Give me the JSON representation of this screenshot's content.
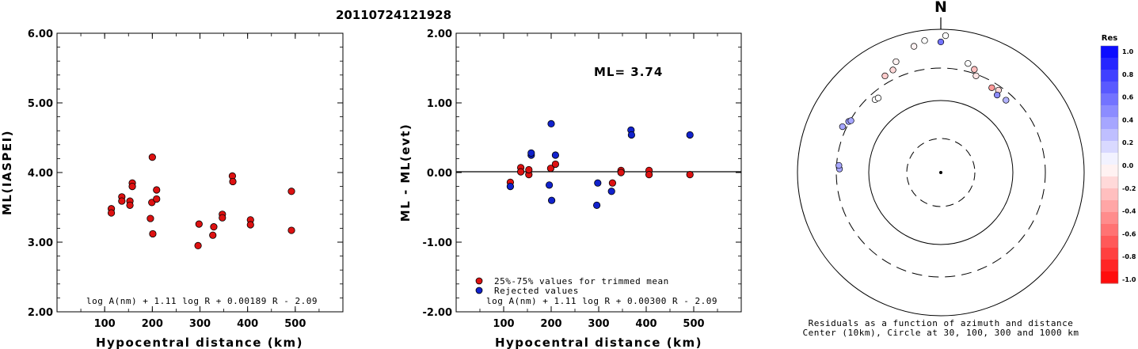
{
  "title": "20110724121928",
  "chart_data": [
    {
      "type": "scatter",
      "name": "ml-vs-distance",
      "xlabel": "Hypocentral distance (km)",
      "ylabel": "ML(IASPEI)",
      "xlim": [
        0,
        600
      ],
      "ylim": [
        2.0,
        6.0
      ],
      "xticks": [
        "100",
        "200",
        "300",
        "400",
        "500"
      ],
      "yticks": [
        "2.00",
        "3.00",
        "4.00",
        "5.00",
        "6.00"
      ],
      "formula": "log A(nm) + 1.11 log R + 0.00189 R - 2.09",
      "series": [
        {
          "color": "#dd1111",
          "points": [
            [
              114,
              3.48
            ],
            [
              114,
              3.42
            ],
            [
              136,
              3.65
            ],
            [
              136,
              3.59
            ],
            [
              153,
              3.59
            ],
            [
              153,
              3.53
            ],
            [
              158,
              3.85
            ],
            [
              158,
              3.8
            ],
            [
              196,
              3.34
            ],
            [
              199,
              3.57
            ],
            [
              200,
              4.22
            ],
            [
              201,
              3.12
            ],
            [
              209,
              3.75
            ],
            [
              209,
              3.62
            ],
            [
              296,
              2.95
            ],
            [
              298,
              3.26
            ],
            [
              327,
              3.1
            ],
            [
              329,
              3.22
            ],
            [
              347,
              3.4
            ],
            [
              347,
              3.35
            ],
            [
              368,
              3.95
            ],
            [
              369,
              3.87
            ],
            [
              406,
              3.32
            ],
            [
              406,
              3.25
            ],
            [
              492,
              3.73
            ],
            [
              492,
              3.17
            ]
          ]
        }
      ]
    },
    {
      "type": "scatter",
      "name": "residual-vs-distance",
      "xlabel": "Hypocentral distance (km)",
      "ylabel": "ML - ML(evt)",
      "xlim": [
        0,
        600
      ],
      "ylim": [
        -2.0,
        2.0
      ],
      "xticks": [
        "100",
        "200",
        "300",
        "400",
        "500"
      ],
      "yticks": [
        "-2.00",
        "-1.00",
        "0.00",
        "1.00",
        "2.00"
      ],
      "ml_text": "ML= 3.74",
      "formula": "log A(nm) + 1.11 log R + 0.00300 R - 2.09",
      "series": [
        {
          "name": "25%-75% values for trimmed mean",
          "color": "#dd1111",
          "points": [
            [
              114,
              -0.14
            ],
            [
              136,
              0.07
            ],
            [
              136,
              0.01
            ],
            [
              153,
              -0.03
            ],
            [
              153,
              0.04
            ],
            [
              199,
              0.06
            ],
            [
              209,
              0.12
            ],
            [
              329,
              -0.15
            ],
            [
              347,
              0.03
            ],
            [
              347,
              0.0
            ],
            [
              406,
              0.03
            ],
            [
              406,
              -0.03
            ],
            [
              492,
              -0.03
            ]
          ]
        },
        {
          "name": "Rejected values",
          "color": "#1122cc",
          "points": [
            [
              114,
              -0.2
            ],
            [
              158,
              0.25
            ],
            [
              158,
              0.28
            ],
            [
              196,
              -0.18
            ],
            [
              200,
              0.7
            ],
            [
              201,
              -0.4
            ],
            [
              209,
              0.25
            ],
            [
              296,
              -0.47
            ],
            [
              298,
              -0.15
            ],
            [
              327,
              -0.27
            ],
            [
              368,
              0.61
            ],
            [
              369,
              0.54
            ],
            [
              492,
              0.54
            ]
          ]
        }
      ]
    },
    {
      "type": "scatter",
      "name": "azimuth-residual-plot",
      "north_label": "N",
      "caption1": "Residuals as a function of azimuth and distance",
      "caption2": "Center (10km), Circle at 30, 100, 300 and 1000 km",
      "colorbar_title": "Res",
      "colorbar_ticks": [
        "1.0",
        "0.8",
        "0.6",
        "0.4",
        "0.2",
        "0.0",
        "-0.2",
        "-0.4",
        "-0.6",
        "-0.8",
        "-1.0"
      ],
      "points": [
        [
          272,
          28,
          0.35
        ],
        [
          274,
          29,
          0.35
        ],
        [
          295,
          37,
          0.35
        ],
        [
          299,
          33,
          0.4
        ],
        [
          300,
          31,
          0.35
        ],
        [
          318,
          24,
          0.0
        ],
        [
          320,
          23,
          0.0
        ],
        [
          330,
          41,
          -0.2
        ],
        [
          335,
          43,
          -0.15
        ],
        [
          338,
          51,
          -0.05
        ],
        [
          348,
          63,
          -0.05
        ],
        [
          353,
          68,
          0.0
        ],
        [
          360,
          65,
          0.55
        ],
        [
          362,
          73,
          0.0
        ],
        [
          374,
          42,
          0.0
        ],
        [
          378,
          37,
          -0.25
        ],
        [
          380,
          30,
          -0.1
        ],
        [
          391,
          25,
          -0.4
        ],
        [
          395,
          27,
          -0.15
        ],
        [
          396,
          21,
          0.45
        ],
        [
          402,
          23,
          0.3
        ]
      ]
    }
  ]
}
